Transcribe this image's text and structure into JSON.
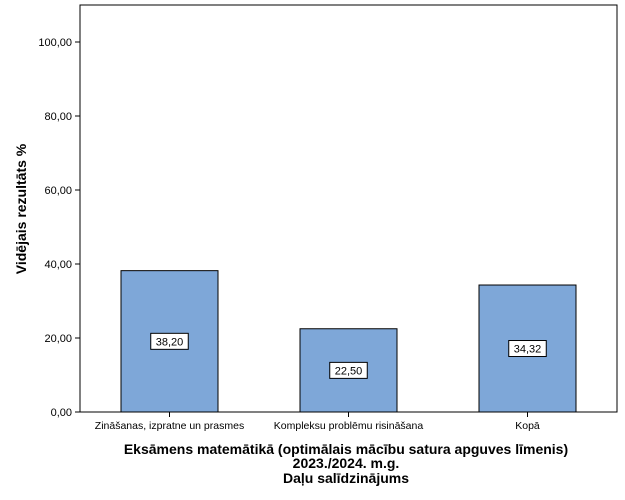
{
  "chart_data": {
    "type": "bar",
    "categories": [
      "Zināšanas, izpratne un prasmes",
      "Kompleksu problēmu risināšana",
      "Kopā"
    ],
    "values": [
      38.2,
      22.5,
      34.32
    ],
    "data_labels": [
      "38,20",
      "22,50",
      "34,32"
    ],
    "ylabel": "Vidējais rezultāts %",
    "xlabel_lines": [
      "Eksāmens matemātikā (optimālais mācību satura apguves līmenis)",
      "2023./2024. m.g.",
      "Daļu salīdzinājums"
    ],
    "ylim": [
      0,
      110
    ],
    "yticks": [
      0,
      20,
      40,
      60,
      80,
      100
    ],
    "ytick_labels": [
      "0,00",
      "20,00",
      "40,00",
      "60,00",
      "80,00",
      "100,00"
    ],
    "grid": false,
    "legend": "none",
    "bar_color": "#7ea7d8",
    "bar_edge_color": "#000000"
  }
}
